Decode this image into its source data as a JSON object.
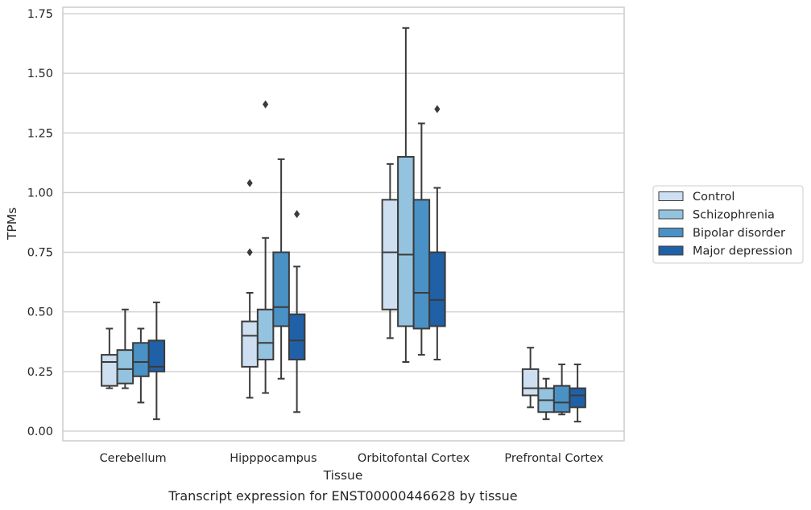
{
  "colors": {
    "series": [
      "#cddff0",
      "#94c3df",
      "#4a92c5",
      "#2060a7"
    ],
    "edge": "#3b3b3b",
    "grid": "#cccccc",
    "frame": "#cccccc"
  },
  "chart_data": {
    "type": "box",
    "title": "Transcript expression for ENST00000446628 by tissue",
    "xlabel": "Tissue",
    "ylabel": "TPMs",
    "ylim": [
      -0.04,
      1.77
    ],
    "yticks": [
      0.0,
      0.25,
      0.5,
      0.75,
      1.0,
      1.25,
      1.5,
      1.75
    ],
    "ytick_labels": [
      "0.00",
      "0.25",
      "0.50",
      "0.75",
      "1.00",
      "1.25",
      "1.50",
      "1.75"
    ],
    "grid": true,
    "legend_position": "right",
    "categories": [
      "Cerebellum",
      "Hipppocampus",
      "Orbitofontal Cortex",
      "Prefrontal Cortex"
    ],
    "series": [
      {
        "name": "Control",
        "boxes": [
          {
            "whislo": 0.18,
            "q1": 0.19,
            "med": 0.29,
            "q3": 0.32,
            "whishi": 0.43,
            "fliers": []
          },
          {
            "whislo": 0.14,
            "q1": 0.27,
            "med": 0.4,
            "q3": 0.46,
            "whishi": 0.58,
            "fliers": [
              0.75,
              1.04
            ]
          },
          {
            "whislo": 0.39,
            "q1": 0.51,
            "med": 0.75,
            "q3": 0.97,
            "whishi": 1.12,
            "fliers": []
          },
          {
            "whislo": 0.1,
            "q1": 0.15,
            "med": 0.18,
            "q3": 0.26,
            "whishi": 0.35,
            "fliers": []
          }
        ]
      },
      {
        "name": "Schizophrenia",
        "boxes": [
          {
            "whislo": 0.18,
            "q1": 0.2,
            "med": 0.26,
            "q3": 0.34,
            "whishi": 0.51,
            "fliers": []
          },
          {
            "whislo": 0.16,
            "q1": 0.3,
            "med": 0.37,
            "q3": 0.51,
            "whishi": 0.81,
            "fliers": [
              1.37
            ]
          },
          {
            "whislo": 0.29,
            "q1": 0.44,
            "med": 0.74,
            "q3": 1.15,
            "whishi": 1.69,
            "fliers": []
          },
          {
            "whislo": 0.05,
            "q1": 0.08,
            "med": 0.13,
            "q3": 0.18,
            "whishi": 0.22,
            "fliers": []
          }
        ]
      },
      {
        "name": "Bipolar disorder",
        "boxes": [
          {
            "whislo": 0.12,
            "q1": 0.23,
            "med": 0.29,
            "q3": 0.37,
            "whishi": 0.43,
            "fliers": []
          },
          {
            "whislo": 0.22,
            "q1": 0.44,
            "med": 0.52,
            "q3": 0.75,
            "whishi": 1.14,
            "fliers": []
          },
          {
            "whislo": 0.32,
            "q1": 0.43,
            "med": 0.58,
            "q3": 0.97,
            "whishi": 1.29,
            "fliers": []
          },
          {
            "whislo": 0.07,
            "q1": 0.08,
            "med": 0.12,
            "q3": 0.19,
            "whishi": 0.28,
            "fliers": []
          }
        ]
      },
      {
        "name": "Major depression",
        "boxes": [
          {
            "whislo": 0.05,
            "q1": 0.25,
            "med": 0.27,
            "q3": 0.38,
            "whishi": 0.54,
            "fliers": []
          },
          {
            "whislo": 0.08,
            "q1": 0.3,
            "med": 0.38,
            "q3": 0.49,
            "whishi": 0.69,
            "fliers": [
              0.91
            ]
          },
          {
            "whislo": 0.3,
            "q1": 0.44,
            "med": 0.55,
            "q3": 0.75,
            "whishi": 1.02,
            "fliers": [
              1.35
            ]
          },
          {
            "whislo": 0.04,
            "q1": 0.1,
            "med": 0.15,
            "q3": 0.18,
            "whishi": 0.28,
            "fliers": []
          }
        ]
      }
    ]
  }
}
